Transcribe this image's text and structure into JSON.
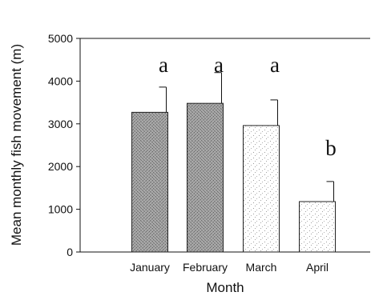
{
  "chart_data": {
    "type": "bar",
    "categories": [
      "January",
      "February",
      "March",
      "April"
    ],
    "values": [
      3270,
      3480,
      2960,
      1180
    ],
    "error_upper": [
      3860,
      4200,
      3560,
      1650
    ],
    "significance_letters": [
      "a",
      "a",
      "a",
      "b"
    ],
    "xlabel": "Month",
    "ylabel": "Mean monthly fish movement (m)",
    "ylim": [
      0,
      5000
    ],
    "yticks": [
      0,
      1000,
      2000,
      3000,
      4000,
      5000
    ],
    "ytick_labels": [
      "0",
      "1000",
      "2000",
      "3000",
      "4000",
      "5000"
    ],
    "grid": false,
    "legend": "none",
    "colors": {
      "bar_stipple": "#8a8a8a",
      "bar_outline": "#222222",
      "axis": "#111111"
    }
  }
}
